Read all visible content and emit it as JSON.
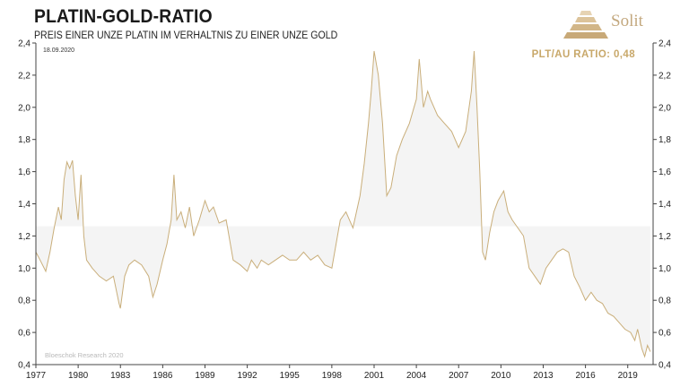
{
  "header": {
    "title": "PLATIN-GOLD-RATIO",
    "subtitle": "PREIS EINER UNZE PLATIN IM VERHÄLTNIS ZU EINER UNZE GOLD",
    "date": "18.09.2020",
    "ratio_label": "PLT/AU RATIO: 0,48",
    "source": "Bloeschok Research 2020",
    "logo_text": "Solit"
  },
  "colors": {
    "line": "#c9ae7a",
    "fill": "#f4f4f4",
    "axis": "#444444",
    "accent": "#c8a86a"
  },
  "chart_data": {
    "type": "line",
    "title": "PLATIN-GOLD-RATIO",
    "xlim": [
      1977,
      2020.8
    ],
    "ylim": [
      0.4,
      2.4
    ],
    "x_ticks": [
      "1977",
      "1980",
      "1983",
      "1986",
      "1989",
      "1992",
      "1995",
      "1998",
      "2001",
      "2004",
      "2007",
      "2010",
      "2013",
      "2016",
      "2019"
    ],
    "y_ticks": [
      "0,4",
      "0,6",
      "0,8",
      "1,0",
      "1,2",
      "1,4",
      "1,6",
      "1,8",
      "2,0",
      "2,2",
      "2,4"
    ],
    "mean": 1.26,
    "grid": false,
    "series": [
      {
        "values": [
          [
            1977.0,
            1.1
          ],
          [
            1977.3,
            1.05
          ],
          [
            1977.7,
            0.98
          ],
          [
            1978.0,
            1.1
          ],
          [
            1978.3,
            1.25
          ],
          [
            1978.6,
            1.38
          ],
          [
            1978.8,
            1.3
          ],
          [
            1979.0,
            1.55
          ],
          [
            1979.2,
            1.66
          ],
          [
            1979.4,
            1.62
          ],
          [
            1979.6,
            1.67
          ],
          [
            1979.8,
            1.45
          ],
          [
            1980.0,
            1.3
          ],
          [
            1980.2,
            1.58
          ],
          [
            1980.4,
            1.2
          ],
          [
            1980.6,
            1.05
          ],
          [
            1981.0,
            1.0
          ],
          [
            1981.5,
            0.95
          ],
          [
            1982.0,
            0.92
          ],
          [
            1982.5,
            0.95
          ],
          [
            1982.9,
            0.78
          ],
          [
            1983.0,
            0.75
          ],
          [
            1983.3,
            0.95
          ],
          [
            1983.6,
            1.02
          ],
          [
            1984.0,
            1.05
          ],
          [
            1984.5,
            1.02
          ],
          [
            1985.0,
            0.95
          ],
          [
            1985.3,
            0.82
          ],
          [
            1985.6,
            0.9
          ],
          [
            1986.0,
            1.05
          ],
          [
            1986.3,
            1.15
          ],
          [
            1986.6,
            1.3
          ],
          [
            1986.8,
            1.58
          ],
          [
            1987.0,
            1.3
          ],
          [
            1987.3,
            1.35
          ],
          [
            1987.6,
            1.25
          ],
          [
            1987.9,
            1.38
          ],
          [
            1988.2,
            1.2
          ],
          [
            1988.6,
            1.3
          ],
          [
            1989.0,
            1.42
          ],
          [
            1989.3,
            1.35
          ],
          [
            1989.6,
            1.38
          ],
          [
            1990.0,
            1.28
          ],
          [
            1990.5,
            1.3
          ],
          [
            1991.0,
            1.05
          ],
          [
            1991.5,
            1.02
          ],
          [
            1992.0,
            0.98
          ],
          [
            1992.3,
            1.05
          ],
          [
            1992.7,
            1.0
          ],
          [
            1993.0,
            1.05
          ],
          [
            1993.5,
            1.02
          ],
          [
            1994.0,
            1.05
          ],
          [
            1994.5,
            1.08
          ],
          [
            1995.0,
            1.05
          ],
          [
            1995.5,
            1.05
          ],
          [
            1996.0,
            1.1
          ],
          [
            1996.5,
            1.05
          ],
          [
            1997.0,
            1.08
          ],
          [
            1997.5,
            1.02
          ],
          [
            1998.0,
            1.0
          ],
          [
            1998.3,
            1.15
          ],
          [
            1998.6,
            1.3
          ],
          [
            1999.0,
            1.35
          ],
          [
            1999.5,
            1.25
          ],
          [
            2000.0,
            1.45
          ],
          [
            2000.3,
            1.65
          ],
          [
            2000.6,
            1.9
          ],
          [
            2000.8,
            2.1
          ],
          [
            2001.0,
            2.35
          ],
          [
            2001.3,
            2.2
          ],
          [
            2001.6,
            1.9
          ],
          [
            2001.9,
            1.45
          ],
          [
            2002.2,
            1.5
          ],
          [
            2002.6,
            1.7
          ],
          [
            2003.0,
            1.8
          ],
          [
            2003.5,
            1.9
          ],
          [
            2004.0,
            2.05
          ],
          [
            2004.2,
            2.3
          ],
          [
            2004.5,
            2.0
          ],
          [
            2004.8,
            2.1
          ],
          [
            2005.0,
            2.05
          ],
          [
            2005.5,
            1.95
          ],
          [
            2006.0,
            1.9
          ],
          [
            2006.5,
            1.85
          ],
          [
            2007.0,
            1.75
          ],
          [
            2007.5,
            1.85
          ],
          [
            2007.9,
            2.1
          ],
          [
            2008.1,
            2.35
          ],
          [
            2008.3,
            2.0
          ],
          [
            2008.5,
            1.6
          ],
          [
            2008.7,
            1.1
          ],
          [
            2008.9,
            1.05
          ],
          [
            2009.2,
            1.22
          ],
          [
            2009.5,
            1.35
          ],
          [
            2009.8,
            1.42
          ],
          [
            2010.2,
            1.48
          ],
          [
            2010.5,
            1.35
          ],
          [
            2010.8,
            1.3
          ],
          [
            2011.2,
            1.25
          ],
          [
            2011.6,
            1.2
          ],
          [
            2012.0,
            1.0
          ],
          [
            2012.4,
            0.95
          ],
          [
            2012.8,
            0.9
          ],
          [
            2013.2,
            1.0
          ],
          [
            2013.6,
            1.05
          ],
          [
            2014.0,
            1.1
          ],
          [
            2014.4,
            1.12
          ],
          [
            2014.8,
            1.1
          ],
          [
            2015.2,
            0.95
          ],
          [
            2015.6,
            0.88
          ],
          [
            2016.0,
            0.8
          ],
          [
            2016.4,
            0.85
          ],
          [
            2016.8,
            0.8
          ],
          [
            2017.2,
            0.78
          ],
          [
            2017.6,
            0.72
          ],
          [
            2018.0,
            0.7
          ],
          [
            2018.4,
            0.66
          ],
          [
            2018.8,
            0.62
          ],
          [
            2019.2,
            0.6
          ],
          [
            2019.5,
            0.55
          ],
          [
            2019.7,
            0.62
          ],
          [
            2020.0,
            0.5
          ],
          [
            2020.2,
            0.45
          ],
          [
            2020.4,
            0.52
          ],
          [
            2020.6,
            0.48
          ]
        ]
      }
    ]
  }
}
